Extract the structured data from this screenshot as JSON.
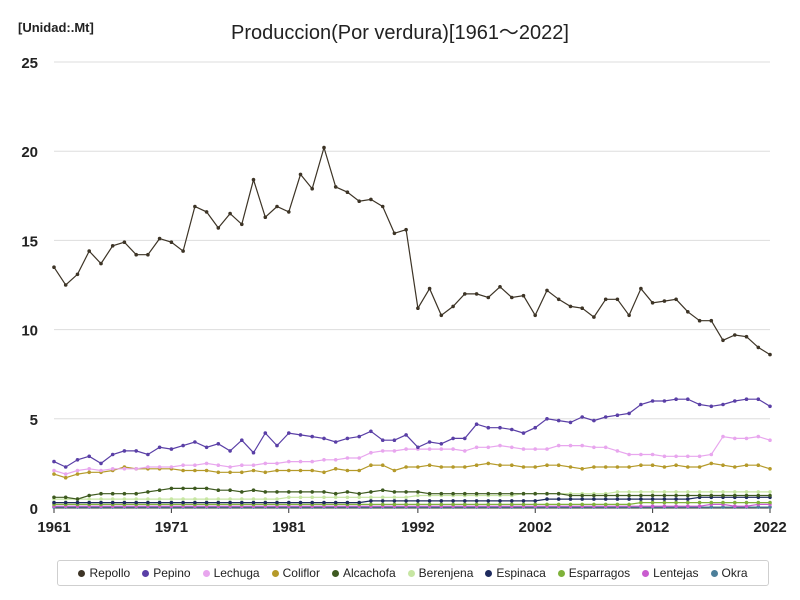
{
  "chart_data": {
    "type": "line",
    "title": "Produccion(Por verdura)[1961～2022]",
    "unit_label": "[Unidad:.Mt]",
    "xlim": [
      1961,
      2022
    ],
    "ylim": [
      0,
      25
    ],
    "x_ticks": [
      "1961",
      "1971",
      "1981",
      "1992",
      "2002",
      "2012",
      "2022"
    ],
    "x_tick_values": [
      1961,
      1971,
      1981,
      1992,
      2002,
      2012,
      2022
    ],
    "y_ticks": [
      "0",
      "5",
      "10",
      "15",
      "20",
      "25"
    ],
    "y_tick_values": [
      0,
      5,
      10,
      15,
      20,
      25
    ],
    "grid": "horizontal",
    "legend_position": "bottom",
    "series": [
      {
        "name": "Repollo",
        "color": "#3d3426",
        "values": [
          13.5,
          12.5,
          13.1,
          14.4,
          13.7,
          14.7,
          14.9,
          14.2,
          14.2,
          15.1,
          14.9,
          14.4,
          16.9,
          16.6,
          15.7,
          16.5,
          15.9,
          18.4,
          16.3,
          16.9,
          16.6,
          18.7,
          17.9,
          20.2,
          18.0,
          17.7,
          17.2,
          17.3,
          16.9,
          15.4,
          15.6,
          11.2,
          12.3,
          10.8,
          11.3,
          12.0,
          12.0,
          11.8,
          12.4,
          11.8,
          11.9,
          10.8,
          12.2,
          11.7,
          11.3,
          11.2,
          10.7,
          11.7,
          11.7,
          10.8,
          12.3,
          11.5,
          11.6,
          11.7,
          11.0,
          10.5,
          10.5,
          9.4,
          9.7,
          9.6,
          9.0,
          8.6
        ]
      },
      {
        "name": "Pepino",
        "color": "#5a3fa6",
        "values": [
          2.6,
          2.3,
          2.7,
          2.9,
          2.5,
          3.0,
          3.2,
          3.2,
          3.0,
          3.4,
          3.3,
          3.5,
          3.7,
          3.4,
          3.6,
          3.2,
          3.8,
          3.1,
          4.2,
          3.5,
          4.2,
          4.1,
          4.0,
          3.9,
          3.7,
          3.9,
          4.0,
          4.3,
          3.8,
          3.8,
          4.1,
          3.4,
          3.7,
          3.6,
          3.9,
          3.9,
          4.7,
          4.5,
          4.5,
          4.4,
          4.2,
          4.5,
          5.0,
          4.9,
          4.8,
          5.1,
          4.9,
          5.1,
          5.2,
          5.3,
          5.8,
          6.0,
          6.0,
          6.1,
          6.1,
          5.8,
          5.7,
          5.8,
          6.0,
          6.1,
          6.1,
          5.7
        ]
      },
      {
        "name": "Lechuga",
        "color": "#e8a6ee",
        "values": [
          2.1,
          1.9,
          2.1,
          2.2,
          2.1,
          2.2,
          2.2,
          2.2,
          2.3,
          2.3,
          2.3,
          2.4,
          2.4,
          2.5,
          2.4,
          2.3,
          2.4,
          2.4,
          2.5,
          2.5,
          2.6,
          2.6,
          2.6,
          2.7,
          2.7,
          2.8,
          2.8,
          3.1,
          3.2,
          3.2,
          3.3,
          3.3,
          3.3,
          3.3,
          3.3,
          3.2,
          3.4,
          3.4,
          3.5,
          3.4,
          3.3,
          3.3,
          3.3,
          3.5,
          3.5,
          3.5,
          3.4,
          3.4,
          3.2,
          3.0,
          3.0,
          3.0,
          2.9,
          2.9,
          2.9,
          2.9,
          3.0,
          4.0,
          3.9,
          3.9,
          4.0,
          3.8
        ]
      },
      {
        "name": "Coliflor",
        "color": "#b59a2a",
        "values": [
          1.9,
          1.7,
          1.9,
          2.0,
          2.0,
          2.1,
          2.3,
          2.2,
          2.2,
          2.2,
          2.2,
          2.1,
          2.1,
          2.1,
          2.0,
          2.0,
          2.0,
          2.1,
          2.0,
          2.1,
          2.1,
          2.1,
          2.1,
          2.0,
          2.2,
          2.1,
          2.1,
          2.4,
          2.4,
          2.1,
          2.3,
          2.3,
          2.4,
          2.3,
          2.3,
          2.3,
          2.4,
          2.5,
          2.4,
          2.4,
          2.3,
          2.3,
          2.4,
          2.4,
          2.3,
          2.2,
          2.3,
          2.3,
          2.3,
          2.3,
          2.4,
          2.4,
          2.3,
          2.4,
          2.3,
          2.3,
          2.5,
          2.4,
          2.3,
          2.4,
          2.4,
          2.2
        ]
      },
      {
        "name": "Alcachofa",
        "color": "#3e5a20",
        "values": [
          0.6,
          0.6,
          0.5,
          0.7,
          0.8,
          0.8,
          0.8,
          0.8,
          0.9,
          1.0,
          1.1,
          1.1,
          1.1,
          1.1,
          1.0,
          1.0,
          0.9,
          1.0,
          0.9,
          0.9,
          0.9,
          0.9,
          0.9,
          0.9,
          0.8,
          0.9,
          0.8,
          0.9,
          1.0,
          0.9,
          0.9,
          0.9,
          0.8,
          0.8,
          0.8,
          0.8,
          0.8,
          0.8,
          0.8,
          0.8,
          0.8,
          0.8,
          0.8,
          0.8,
          0.7,
          0.7,
          0.7,
          0.7,
          0.7,
          0.7,
          0.7,
          0.7,
          0.7,
          0.7,
          0.7,
          0.7,
          0.7,
          0.7,
          0.7,
          0.7,
          0.7,
          0.7
        ]
      },
      {
        "name": "Berenjena",
        "color": "#c7e6a3",
        "values": [
          0.5,
          0.5,
          0.5,
          0.5,
          0.5,
          0.5,
          0.5,
          0.5,
          0.5,
          0.5,
          0.5,
          0.5,
          0.5,
          0.5,
          0.5,
          0.5,
          0.5,
          0.5,
          0.5,
          0.5,
          0.6,
          0.6,
          0.6,
          0.6,
          0.6,
          0.6,
          0.6,
          0.6,
          0.6,
          0.6,
          0.6,
          0.7,
          0.7,
          0.7,
          0.7,
          0.7,
          0.7,
          0.7,
          0.7,
          0.7,
          0.8,
          0.8,
          0.8,
          0.8,
          0.8,
          0.8,
          0.8,
          0.8,
          0.9,
          0.9,
          0.9,
          0.9,
          0.9,
          0.9,
          0.9,
          0.9,
          0.9,
          0.9,
          0.9,
          0.9,
          0.9,
          0.9
        ]
      },
      {
        "name": "Espinaca",
        "color": "#1e2a5e",
        "values": [
          0.3,
          0.3,
          0.3,
          0.3,
          0.3,
          0.3,
          0.3,
          0.3,
          0.3,
          0.3,
          0.3,
          0.3,
          0.3,
          0.3,
          0.3,
          0.3,
          0.3,
          0.3,
          0.3,
          0.3,
          0.3,
          0.3,
          0.3,
          0.3,
          0.3,
          0.3,
          0.3,
          0.4,
          0.4,
          0.4,
          0.4,
          0.4,
          0.4,
          0.4,
          0.4,
          0.4,
          0.4,
          0.4,
          0.4,
          0.4,
          0.4,
          0.4,
          0.5,
          0.5,
          0.5,
          0.5,
          0.5,
          0.5,
          0.5,
          0.5,
          0.5,
          0.5,
          0.5,
          0.5,
          0.5,
          0.6,
          0.6,
          0.6,
          0.6,
          0.6,
          0.6,
          0.6
        ]
      },
      {
        "name": "Esparragos",
        "color": "#7fb23a",
        "values": [
          0.2,
          0.2,
          0.2,
          0.2,
          0.2,
          0.2,
          0.2,
          0.2,
          0.2,
          0.2,
          0.2,
          0.2,
          0.2,
          0.2,
          0.2,
          0.2,
          0.2,
          0.2,
          0.2,
          0.2,
          0.2,
          0.2,
          0.2,
          0.2,
          0.2,
          0.2,
          0.2,
          0.2,
          0.2,
          0.2,
          0.2,
          0.2,
          0.2,
          0.2,
          0.2,
          0.2,
          0.2,
          0.2,
          0.2,
          0.2,
          0.2,
          0.2,
          0.2,
          0.2,
          0.2,
          0.2,
          0.2,
          0.2,
          0.2,
          0.2,
          0.3,
          0.3,
          0.3,
          0.3,
          0.3,
          0.3,
          0.3,
          0.3,
          0.3,
          0.3,
          0.3,
          0.3
        ]
      },
      {
        "name": "Lentejas",
        "color": "#c95ccf",
        "values": [
          0.1,
          0.1,
          0.1,
          0.1,
          0.1,
          0.1,
          0.1,
          0.1,
          0.1,
          0.1,
          0.1,
          0.1,
          0.1,
          0.1,
          0.1,
          0.1,
          0.1,
          0.1,
          0.1,
          0.1,
          0.1,
          0.1,
          0.1,
          0.1,
          0.1,
          0.1,
          0.1,
          0.1,
          0.1,
          0.1,
          0.1,
          0.1,
          0.1,
          0.1,
          0.1,
          0.1,
          0.1,
          0.1,
          0.1,
          0.1,
          0.1,
          0.1,
          0.1,
          0.1,
          0.1,
          0.1,
          0.1,
          0.1,
          0.1,
          0.1,
          0.1,
          0.1,
          0.1,
          0.1,
          0.1,
          0.1,
          0.2,
          0.2,
          0.1,
          0.1,
          0.2,
          0.2
        ]
      },
      {
        "name": "Okra",
        "color": "#4c7f9a",
        "values": [
          0.05,
          0.05,
          0.05,
          0.05,
          0.05,
          0.05,
          0.05,
          0.05,
          0.05,
          0.05,
          0.05,
          0.05,
          0.05,
          0.05,
          0.05,
          0.05,
          0.05,
          0.05,
          0.05,
          0.05,
          0.05,
          0.05,
          0.05,
          0.05,
          0.05,
          0.05,
          0.05,
          0.05,
          0.05,
          0.05,
          0.05,
          0.05,
          0.05,
          0.05,
          0.05,
          0.05,
          0.05,
          0.05,
          0.05,
          0.05,
          0.05,
          0.05,
          0.05,
          0.05,
          0.05,
          0.05,
          0.05,
          0.05,
          0.05,
          0.05,
          0.05,
          0.05,
          0.05,
          0.05,
          0.05,
          0.05,
          0.05,
          0.05,
          0.05,
          0.05,
          0.05,
          0.05
        ]
      }
    ]
  }
}
